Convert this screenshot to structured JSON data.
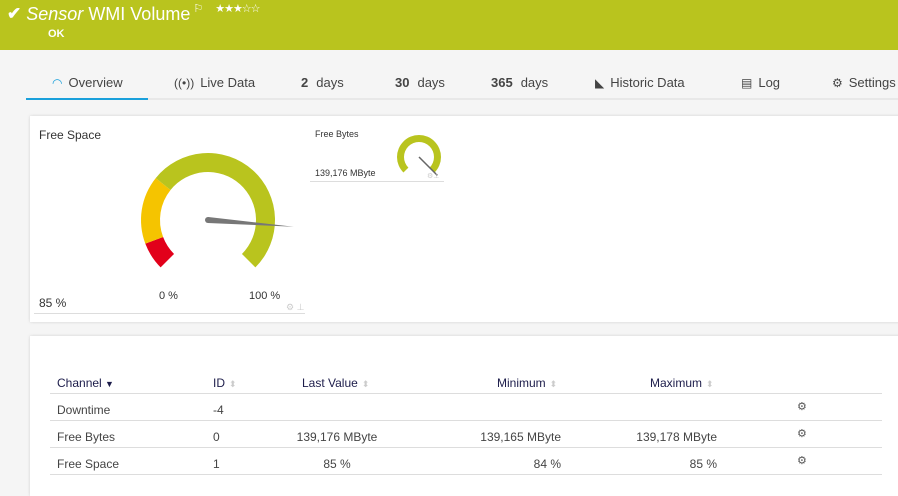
{
  "header": {
    "title_italic": "Sensor",
    "title": "WMI Volume",
    "status": "OK",
    "check_icon": "check-icon",
    "flag_icon": "flag-icon",
    "stars": "★★★☆☆",
    "rating": 3,
    "bg": "#b9c41e"
  },
  "tabs": [
    {
      "label": "Overview",
      "icon": "gauge-icon",
      "active": true
    },
    {
      "label": "Live Data",
      "icon": "broadcast-icon"
    },
    {
      "num": "2",
      "label": "days"
    },
    {
      "num": "30",
      "label": "days"
    },
    {
      "num": "365",
      "label": "days"
    },
    {
      "label": "Historic Data",
      "icon": "area-chart-icon"
    },
    {
      "label": "Log",
      "icon": "list-icon"
    },
    {
      "label": "Settings",
      "icon": "gear-icon"
    }
  ],
  "gauges": {
    "main": {
      "title": "Free Space",
      "value": "85 %",
      "value_pct": 85,
      "min_label": "0 %",
      "max_label": "100 %",
      "ranges": [
        {
          "to": 9,
          "color": "#e2001a"
        },
        {
          "to": 31,
          "color": "#f5c400"
        },
        {
          "to": 100,
          "color": "#b9c41e"
        }
      ]
    },
    "small": {
      "title": "Free Bytes",
      "value": "139,176 MByte",
      "color": "#b9c41e"
    }
  },
  "table": {
    "headers": [
      "Channel",
      "ID",
      "Last Value",
      "Minimum",
      "Maximum"
    ],
    "rows": [
      {
        "channel": "Downtime",
        "id": "-4",
        "last": "",
        "min": "",
        "max": ""
      },
      {
        "channel": "Free Bytes",
        "id": "0",
        "last": "139,176 MByte",
        "min": "139,165 MByte",
        "max": "139,178 MByte"
      },
      {
        "channel": "Free Space",
        "id": "1",
        "last": "85 %",
        "min": "84 %",
        "max": "85 %"
      }
    ]
  }
}
